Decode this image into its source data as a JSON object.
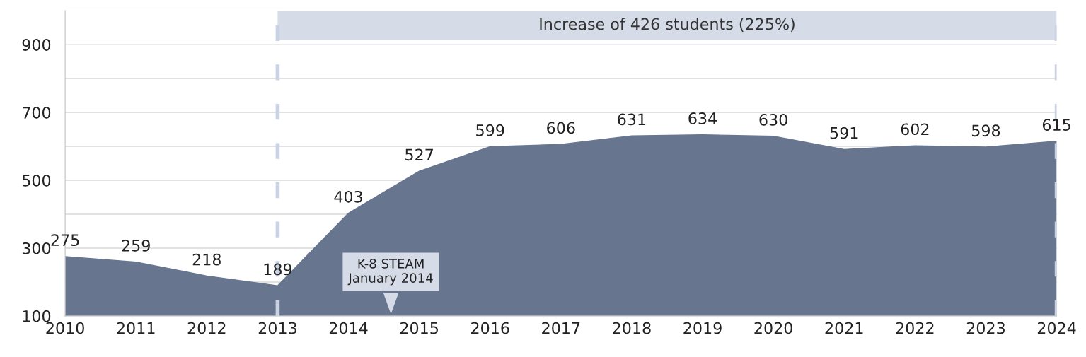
{
  "chart_data": {
    "type": "area",
    "x": [
      2010,
      2011,
      2012,
      2013,
      2014,
      2015,
      2016,
      2017,
      2018,
      2019,
      2020,
      2021,
      2022,
      2023,
      2024
    ],
    "values": [
      275,
      259,
      218,
      189,
      403,
      527,
      599,
      606,
      631,
      634,
      630,
      591,
      602,
      598,
      615
    ],
    "color": "#67758f",
    "data_labels": true,
    "xlim": [
      2010,
      2024
    ],
    "xticks": [
      2010,
      2011,
      2012,
      2013,
      2014,
      2015,
      2016,
      2017,
      2018,
      2019,
      2020,
      2021,
      2022,
      2023,
      2024
    ],
    "ylim": [
      100,
      1000
    ],
    "yticks": [
      100,
      {
        "value": 200,
        "label": null
      },
      300,
      {
        "value": 400,
        "label": null
      },
      500,
      {
        "value": 600,
        "label": null
      },
      700,
      {
        "value": 800,
        "label": null
      },
      900,
      {
        "value": 1000,
        "label": null
      }
    ],
    "grid": "y",
    "ref_lines": [
      {
        "axis": "x",
        "value": 2013,
        "label": null,
        "color": "#c9d3e3",
        "line_style": "dashed"
      },
      {
        "axis": "x",
        "value": 2024,
        "label": null,
        "color": "#c9d3e3",
        "line_style": "dashed"
      }
    ],
    "bands": [
      {
        "axis": "x",
        "from": 2013,
        "to": 2024,
        "label": "Increase of 426 students (225%)",
        "color": "#d5dce8"
      }
    ],
    "annotations": [
      {
        "text": "K-8 STEAM\nJanuary 2014",
        "x": 2014.6,
        "y": 100
      }
    ]
  }
}
